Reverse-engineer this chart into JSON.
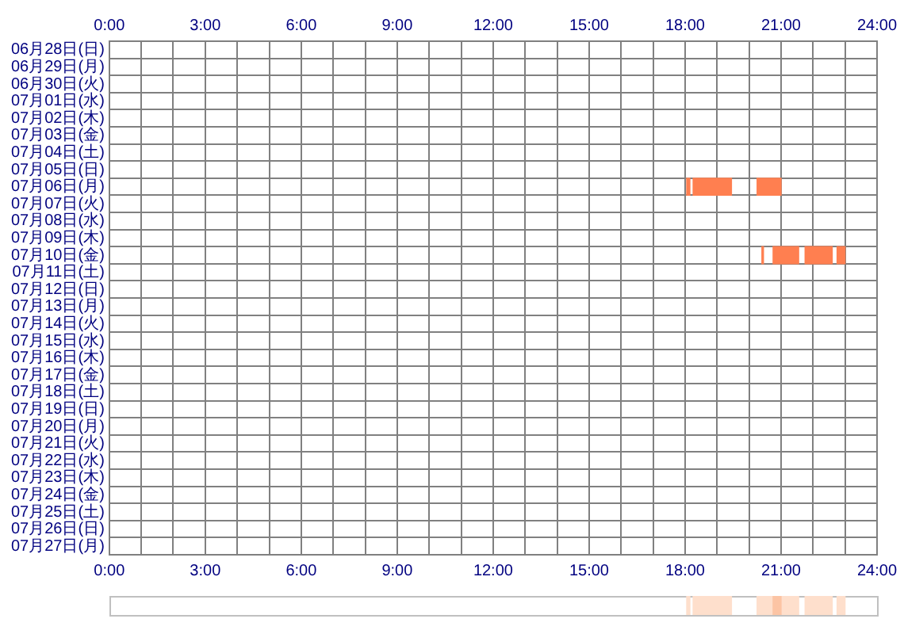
{
  "chart_data": [
    {
      "type": "bar",
      "orientation": "horizontal",
      "categories": [
        "06月28日(日)",
        "06月29日(月)",
        "06月30日(火)",
        "07月01日(水)",
        "07月02日(木)",
        "07月03日(金)",
        "07月04日(土)",
        "07月05日(日)",
        "07月06日(月)",
        "07月07日(火)",
        "07月08日(水)",
        "07月09日(木)",
        "07月10日(金)",
        "07月11日(土)",
        "07月12日(日)",
        "07月13日(月)",
        "07月14日(火)",
        "07月15日(水)",
        "07月16日(木)",
        "07月17日(金)",
        "07月18日(土)",
        "07月19日(日)",
        "07月20日(月)",
        "07月21日(火)",
        "07月22日(水)",
        "07月23日(木)",
        "07月24日(金)",
        "07月25日(土)",
        "07月26日(日)",
        "07月27日(月)"
      ],
      "series": [
        {
          "color": "#ff7f50",
          "base": [
            null,
            null,
            null,
            null,
            null,
            null,
            null,
            null,
            18.05,
            null,
            null,
            null,
            20.4,
            null,
            null,
            null,
            null,
            null,
            null,
            null,
            null,
            null,
            null,
            null,
            null,
            null,
            null,
            null,
            null,
            null
          ],
          "values": [
            null,
            null,
            null,
            null,
            null,
            null,
            null,
            null,
            0.1,
            null,
            null,
            null,
            0.05,
            null,
            null,
            null,
            null,
            null,
            null,
            null,
            null,
            null,
            null,
            null,
            null,
            null,
            null,
            null,
            null,
            null
          ]
        },
        {
          "color": "#ff7f50",
          "base": [
            null,
            null,
            null,
            null,
            null,
            null,
            null,
            null,
            18.25,
            null,
            null,
            null,
            20.75,
            null,
            null,
            null,
            null,
            null,
            null,
            null,
            null,
            null,
            null,
            null,
            null,
            null,
            null,
            null,
            null,
            null
          ],
          "values": [
            null,
            null,
            null,
            null,
            null,
            null,
            null,
            null,
            1.2,
            null,
            null,
            null,
            0.8,
            null,
            null,
            null,
            null,
            null,
            null,
            null,
            null,
            null,
            null,
            null,
            null,
            null,
            null,
            null,
            null,
            null
          ]
        },
        {
          "color": "#ff7f50",
          "base": [
            null,
            null,
            null,
            null,
            null,
            null,
            null,
            null,
            20.25,
            null,
            null,
            null,
            21.75,
            null,
            null,
            null,
            null,
            null,
            null,
            null,
            null,
            null,
            null,
            null,
            null,
            null,
            null,
            null,
            null,
            null
          ],
          "values": [
            null,
            null,
            null,
            null,
            null,
            null,
            null,
            null,
            0.75,
            null,
            null,
            null,
            0.85,
            null,
            null,
            null,
            null,
            null,
            null,
            null,
            null,
            null,
            null,
            null,
            null,
            null,
            null,
            null,
            null,
            null
          ]
        },
        {
          "color": "#ff7f50",
          "base": [
            null,
            null,
            null,
            null,
            null,
            null,
            null,
            null,
            null,
            null,
            null,
            null,
            22.75,
            null,
            null,
            null,
            null,
            null,
            null,
            null,
            null,
            null,
            null,
            null,
            null,
            null,
            null,
            null,
            null,
            null
          ],
          "values": [
            null,
            null,
            null,
            null,
            null,
            null,
            null,
            null,
            null,
            null,
            null,
            null,
            0.25,
            null,
            null,
            null,
            null,
            null,
            null,
            null,
            null,
            null,
            null,
            null,
            null,
            null,
            null,
            null,
            null,
            null
          ]
        }
      ],
      "xlim": [
        0,
        24
      ],
      "xticks": [
        {
          "value": 0,
          "label": "0:00"
        },
        {
          "value": 1,
          "label": null
        },
        {
          "value": 2,
          "label": null
        },
        {
          "value": 3,
          "label": "3:00"
        },
        {
          "value": 4,
          "label": null
        },
        {
          "value": 5,
          "label": null
        },
        {
          "value": 6,
          "label": "6:00"
        },
        {
          "value": 7,
          "label": null
        },
        {
          "value": 8,
          "label": null
        },
        {
          "value": 9,
          "label": "9:00"
        },
        {
          "value": 10,
          "label": null
        },
        {
          "value": 11,
          "label": null
        },
        {
          "value": 12,
          "label": "12:00"
        },
        {
          "value": 13,
          "label": null
        },
        {
          "value": 14,
          "label": null
        },
        {
          "value": 15,
          "label": "15:00"
        },
        {
          "value": 16,
          "label": null
        },
        {
          "value": 17,
          "label": null
        },
        {
          "value": 18,
          "label": "18:00"
        },
        {
          "value": 19,
          "label": null
        },
        {
          "value": 20,
          "label": null
        },
        {
          "value": 21,
          "label": "21:00"
        },
        {
          "value": 22,
          "label": null
        },
        {
          "value": 23,
          "label": null
        },
        {
          "value": 24,
          "label": "24:00"
        }
      ],
      "x2lim": [
        0,
        24
      ],
      "x2ticks": [
        {
          "value": 0,
          "label": "0:00"
        },
        {
          "value": 3,
          "label": "3:00"
        },
        {
          "value": 6,
          "label": "6:00"
        },
        {
          "value": 9,
          "label": "9:00"
        },
        {
          "value": 12,
          "label": "12:00"
        },
        {
          "value": 15,
          "label": "15:00"
        },
        {
          "value": 18,
          "label": "18:00"
        },
        {
          "value": 21,
          "label": "21:00"
        },
        {
          "value": 24,
          "label": "24:00"
        }
      ],
      "grid": true
    },
    {
      "type": "bar",
      "orientation": "horizontal",
      "categories": [
        null
      ],
      "series": [
        {
          "color": "#fedfcc",
          "base": [
            18.05
          ],
          "values": [
            0.1
          ]
        },
        {
          "color": "#fedfcc",
          "base": [
            18.25
          ],
          "values": [
            1.2
          ]
        },
        {
          "color": "#fedfcc",
          "base": [
            20.25
          ],
          "values": [
            1.3
          ]
        },
        {
          "color": "#fedfcc",
          "base": [
            21.75
          ],
          "values": [
            0.85
          ]
        },
        {
          "color": "#fedfcc",
          "base": [
            22.75
          ],
          "values": [
            0.25
          ]
        },
        {
          "color": "#fcc4a4",
          "base": [
            20.75
          ],
          "values": [
            0.25
          ]
        }
      ],
      "xlim": [
        0,
        24
      ],
      "tick_labels": false
    }
  ]
}
